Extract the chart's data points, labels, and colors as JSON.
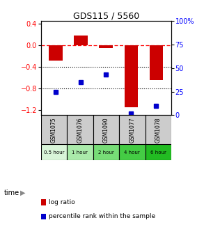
{
  "title": "GDS115 / 5560",
  "samples": [
    "GSM1075",
    "GSM1076",
    "GSM1090",
    "GSM1077",
    "GSM1078"
  ],
  "time_labels": [
    "0.5 hour",
    "1 hour",
    "2 hour",
    "4 hour",
    "6 hour"
  ],
  "time_colors": [
    "#d9f5d9",
    "#aaeaaa",
    "#77dd77",
    "#44cc44",
    "#22bb22"
  ],
  "log_ratio": [
    -0.28,
    0.18,
    -0.05,
    -1.15,
    -0.65
  ],
  "percentile": [
    25,
    35,
    43,
    2,
    10
  ],
  "bar_color": "#cc0000",
  "dot_color": "#0000cc",
  "ylim_left": [
    -1.3,
    0.45
  ],
  "ylim_right": [
    0,
    100
  ],
  "yticks_left": [
    0.4,
    0.0,
    -0.4,
    -0.8,
    -1.2
  ],
  "yticks_right": [
    100,
    75,
    50,
    25,
    0
  ],
  "hline_y": 0,
  "dotted_lines": [
    -0.4,
    -0.8
  ],
  "bar_width": 0.55,
  "bar_color_dark": "#aa0000"
}
